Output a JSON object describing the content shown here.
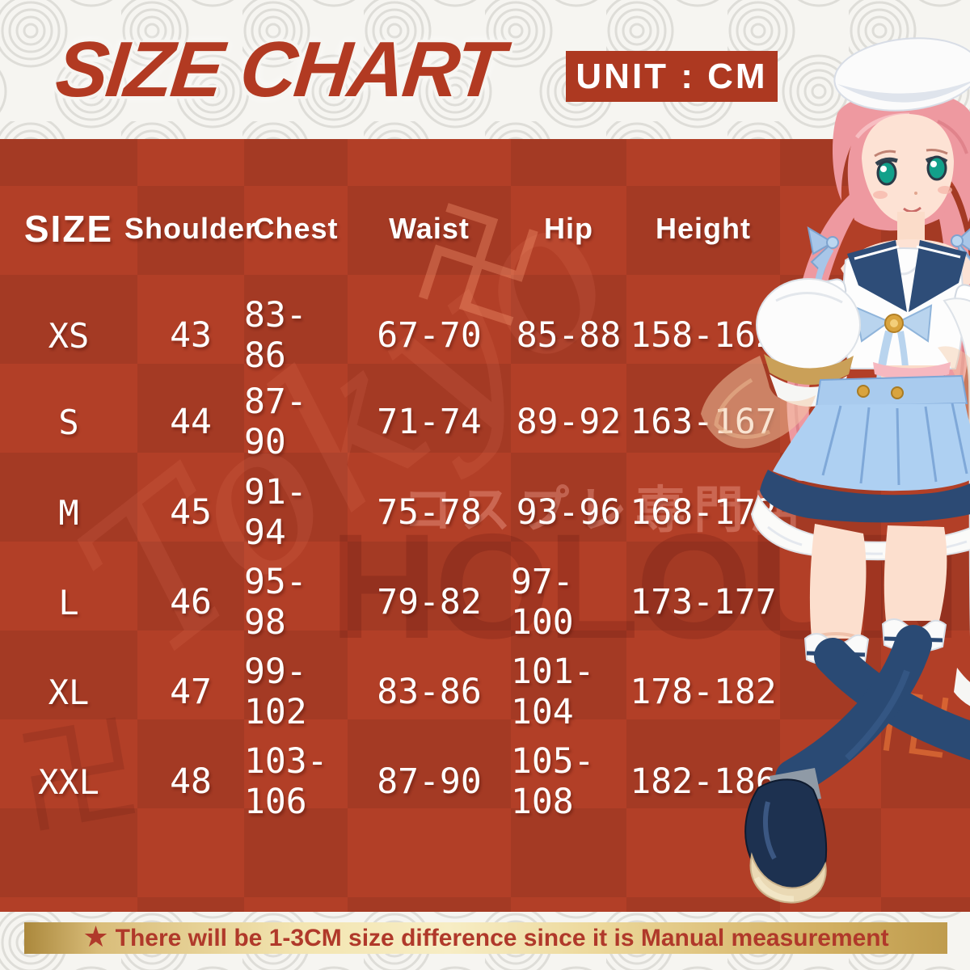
{
  "header": {
    "title": "SIZE CHART",
    "unit_label": "UNIT : CM"
  },
  "table": {
    "columns": [
      "SIZE",
      "Shoulder",
      "Chest",
      "Waist",
      "Hip",
      "Height"
    ],
    "rows": [
      {
        "size": "XS",
        "shoulder": "43",
        "chest": "83-86",
        "waist": "67-70",
        "hip": "85-88",
        "height": "158-162"
      },
      {
        "size": "S",
        "shoulder": "44",
        "chest": "87-90",
        "waist": "71-74",
        "hip": "89-92",
        "height": "163-167"
      },
      {
        "size": "M",
        "shoulder": "45",
        "chest": "91-94",
        "waist": "75-78",
        "hip": "93-96",
        "height": "168-172"
      },
      {
        "size": "L",
        "shoulder": "46",
        "chest": "95-98",
        "waist": "79-82",
        "hip": "97-100",
        "height": "173-177"
      },
      {
        "size": "XL",
        "shoulder": "47",
        "chest": "99-102",
        "waist": "83-86",
        "hip": "101-104",
        "height": "178-182"
      },
      {
        "size": "XXL",
        "shoulder": "48",
        "chest": "103-106",
        "waist": "87-90",
        "hip": "105-108",
        "height": "182-186"
      }
    ]
  },
  "footer": {
    "star_icon": "★",
    "note": "There will be 1-3CM size difference since it is Manual measurement"
  },
  "watermarks": {
    "shop_name_jp": "コスプレ専門店",
    "brand": "HOLOUN",
    "script_text": "Tokyo",
    "manji": "卍"
  },
  "colors": {
    "brand_red": "#b23a22",
    "table_red": "#b23f27",
    "banner_gold": "#e6cd8f",
    "note_red": "#b0392a"
  }
}
